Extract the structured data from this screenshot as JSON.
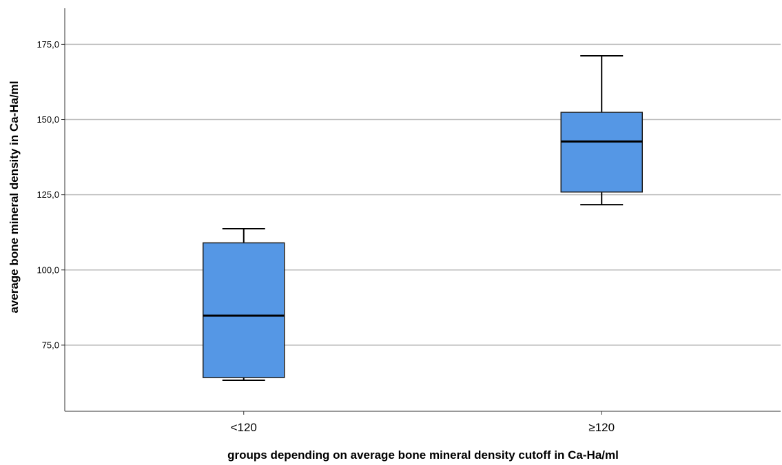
{
  "chart_data": {
    "type": "boxplot",
    "title": "",
    "xlabel": "groups depending on average bone mineral density cutoff in Ca-Ha/ml",
    "ylabel": "average bone mineral density in Ca-Ha/ml",
    "ylim": [
      53,
      187
    ],
    "yticks": [
      75,
      100,
      125,
      150,
      175
    ],
    "ytick_labels": [
      "75,0",
      "100,0",
      "125,0",
      "150,0",
      "175,0"
    ],
    "categories": [
      "<120",
      "≥120"
    ],
    "boxes": [
      {
        "category": "<120",
        "min": 63.3,
        "q1": 64.2,
        "median": 84.8,
        "q3": 109.0,
        "max": 113.7
      },
      {
        "category": "≥120",
        "min": 121.7,
        "q1": 125.9,
        "median": 142.7,
        "q3": 152.4,
        "max": 171.2
      }
    ],
    "grid": true,
    "colors": {
      "box_fill": "#5597e5",
      "box_stroke": "#1f1f1f",
      "grid": "#bebebe",
      "axis": "#333333"
    }
  }
}
